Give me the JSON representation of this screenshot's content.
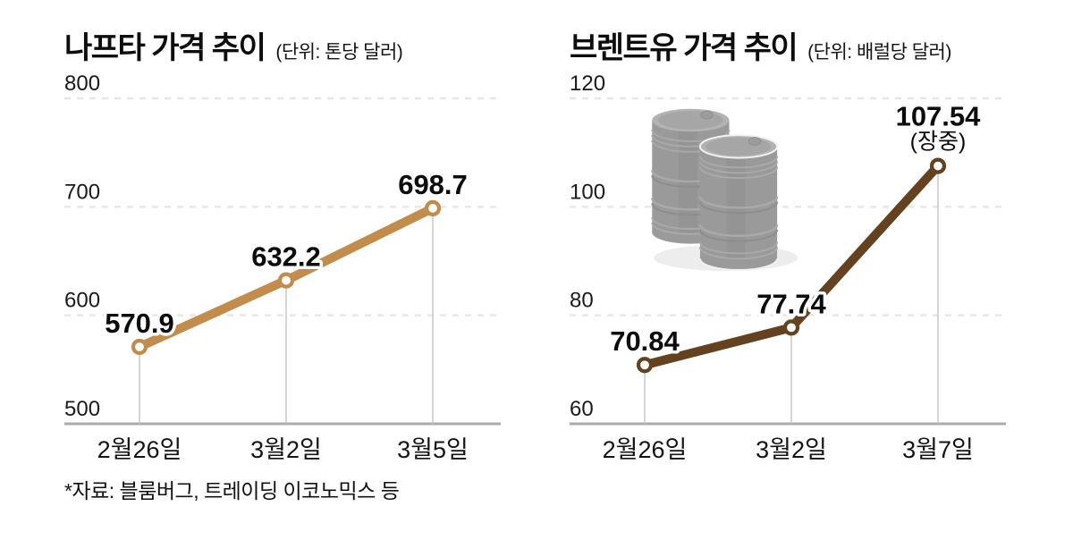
{
  "source_note": "*자료: 블룸버그, 트레이딩 이코노믹스 등",
  "colors": {
    "background": "#ffffff",
    "text": "#111111",
    "gridline": "#e7e7e7",
    "axis_line": "#ababab",
    "drop_line": "#c9c9c9",
    "marker_fill": "#ffffff",
    "naphtha_line": "#c28c4c",
    "brent_line": "#65421f",
    "barrel_gray": "#9a9a9a",
    "barrel_shadow": "#ededed"
  },
  "chart_data": [
    {
      "type": "line",
      "title": "나프타 가격 추이",
      "unit_label": "(단위: 톤당 달러)",
      "categories": [
        "2월26일",
        "3월2일",
        "3월5일"
      ],
      "values": [
        570.9,
        632.2,
        698.7
      ],
      "value_labels": [
        "570.9",
        "632.2",
        "698.7"
      ],
      "annotations": [
        "",
        "",
        ""
      ],
      "ylim": [
        500,
        800
      ],
      "yticks": [
        500,
        600,
        700,
        800
      ],
      "line_color": "#c28c4c",
      "grid": "horizontal-dashed",
      "legend": "none",
      "marker": "white-circle-ring"
    },
    {
      "type": "line",
      "title": "브렌트유 가격 추이",
      "unit_label": "(단위: 배럴당 달러)",
      "categories": [
        "2월26일",
        "3월2일",
        "3월7일"
      ],
      "values": [
        70.84,
        77.74,
        107.54
      ],
      "value_labels": [
        "70.84",
        "77.74",
        "107.54"
      ],
      "annotations": [
        "",
        "",
        "(장중)"
      ],
      "ylim": [
        60,
        120
      ],
      "yticks": [
        60,
        80,
        100,
        120
      ],
      "line_color": "#65421f",
      "grid": "horizontal-dashed",
      "legend": "none",
      "marker": "white-circle-ring",
      "icon": "oil-barrels"
    }
  ]
}
